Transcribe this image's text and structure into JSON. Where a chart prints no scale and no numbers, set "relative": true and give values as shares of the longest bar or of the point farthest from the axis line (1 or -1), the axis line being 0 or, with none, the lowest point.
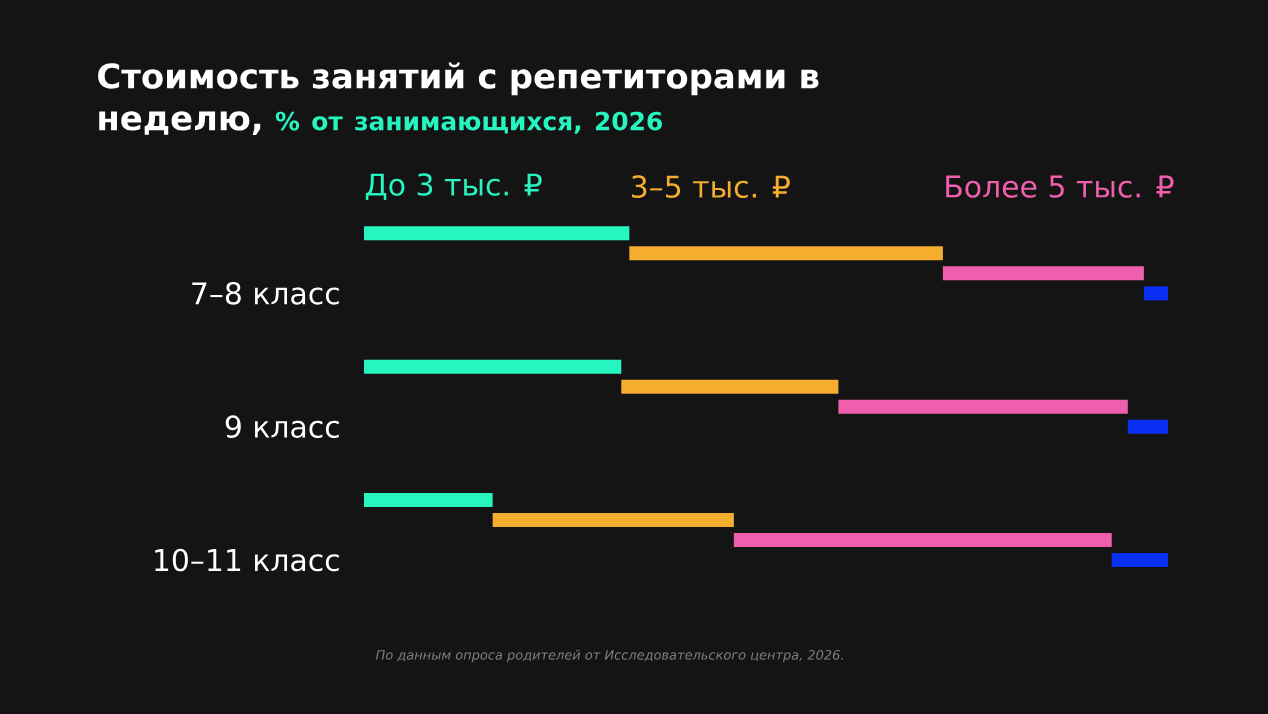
{
  "chart_data": {
    "type": "bar",
    "orientation": "horizontal",
    "stacked": true,
    "relative": true,
    "title": "Стоимость занятий с репетиторами в неделю,",
    "subtitle": "% от занимающихся, 2026",
    "categories": [
      "7–8 класс",
      "9 класс",
      "10–11 класс"
    ],
    "series": [
      {
        "name": "До 3 тыс. ₽",
        "color": "#27f5c0",
        "values": [
          0.33,
          0.32,
          0.16
        ]
      },
      {
        "name": "3–5 тыс. ₽",
        "color": "#f5ad30",
        "values": [
          0.39,
          0.27,
          0.3
        ]
      },
      {
        "name": "Более 5 тыс. ₽",
        "color": "#ef5fae",
        "values": [
          0.25,
          0.36,
          0.47
        ]
      },
      {
        "color": "#0a2ff5",
        "values": [
          0.03,
          0.05,
          0.07
        ]
      }
    ],
    "legend": "top",
    "annotations": [
      "По данным опроса родителей от Исследовательского центра, 2026."
    ]
  }
}
